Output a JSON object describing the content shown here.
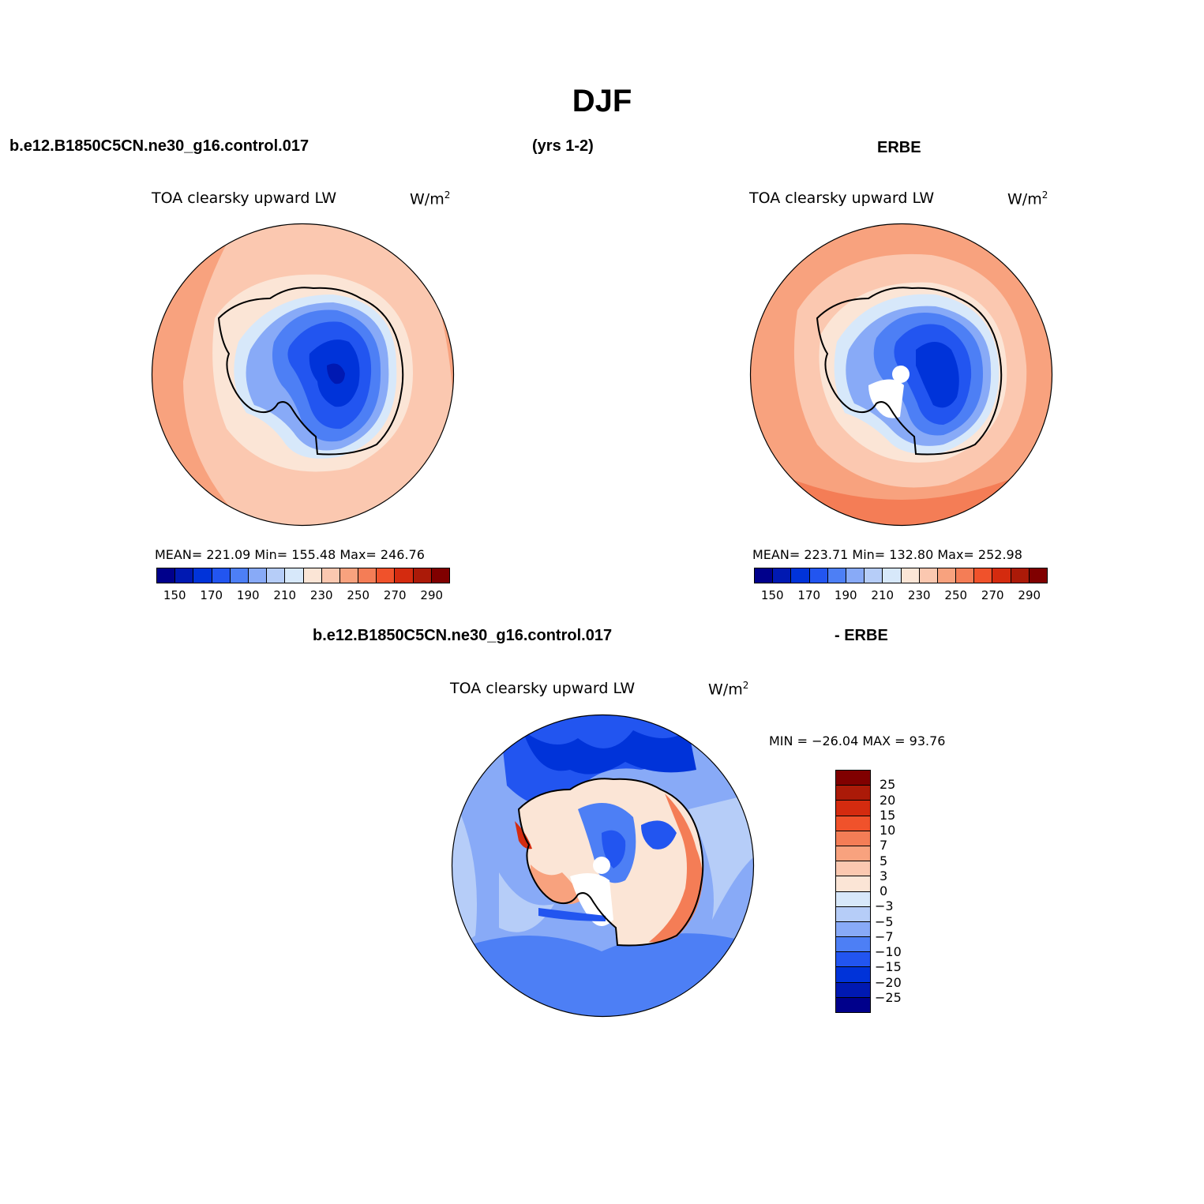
{
  "figure": {
    "season": "DJF",
    "case_name": "b.e12.B1850C5CN.ne30_g16.control.017",
    "years": "(yrs 1-2)",
    "obs_name": "ERBE",
    "diff_obs_label": "- ERBE"
  },
  "panels": [
    {
      "variable": "TOA clearsky upward LW",
      "units": "W/m",
      "units_sup": "2",
      "stats": "MEAN= 221.09   Min= 155.48   Max= 246.76"
    },
    {
      "variable": "TOA clearsky upward LW",
      "units": "W/m",
      "units_sup": "2",
      "stats": "MEAN= 223.71   Min= 132.80   Max= 252.98"
    }
  ],
  "diff_panel": {
    "variable": "TOA clearsky upward LW",
    "units": "W/m",
    "units_sup": "2",
    "minmax": "MIN = −26.04 MAX =   93.76"
  },
  "colorbar_abs": {
    "colors": [
      "#00008b",
      "#0019b2",
      "#0033d9",
      "#2255f0",
      "#4d7ff5",
      "#88aaf7",
      "#b6cdf8",
      "#d7e8fa",
      "#fbe5d6",
      "#fbc8b0",
      "#f8a27e",
      "#f47d56",
      "#f0522b",
      "#d42b0f",
      "#ab1a08",
      "#800000"
    ],
    "tick_labels": [
      "150",
      "170",
      "190",
      "210",
      "230",
      "250",
      "270",
      "290"
    ]
  },
  "colorbar_diff": {
    "colors": [
      "#800000",
      "#ab1a08",
      "#d42b0f",
      "#f0522b",
      "#f47d56",
      "#f8a27e",
      "#fbc8b0",
      "#fbe5d6",
      "#d7e8fa",
      "#b6cdf8",
      "#88aaf7",
      "#4d7ff5",
      "#2255f0",
      "#0033d9",
      "#0019b2",
      "#00008b"
    ],
    "labels": [
      "25",
      "20",
      "15",
      "10",
      "7",
      "5",
      "3",
      "0",
      "−3",
      "−5",
      "−7",
      "−10",
      "−15",
      "−20",
      "−25"
    ]
  }
}
